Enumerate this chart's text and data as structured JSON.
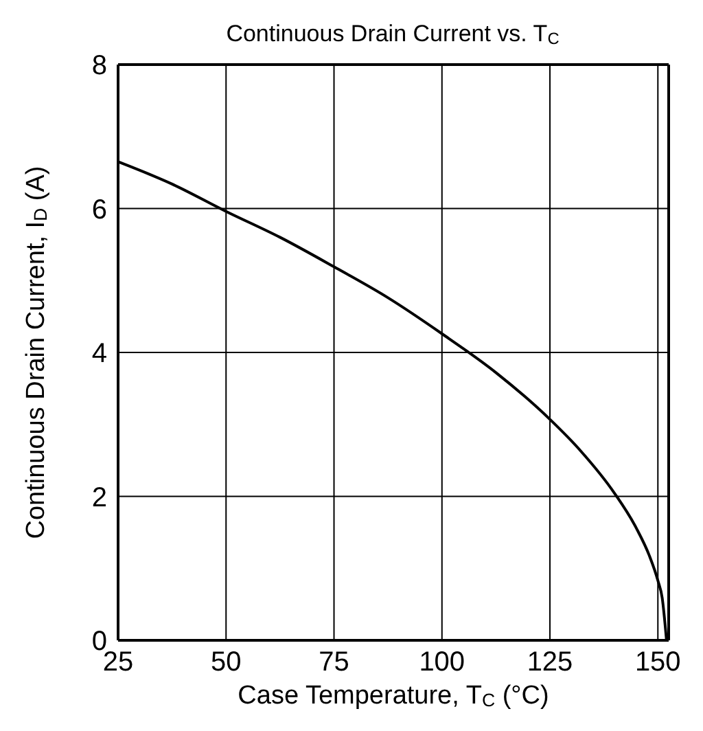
{
  "chart_data": {
    "type": "line",
    "title": "Continuous Drain Current vs. T$_{C}$",
    "xlabel": "Case Temperature, T$_{C}$ (°C)",
    "ylabel": "Continuous Drain Current, I$_{D}$ (A)",
    "x": [
      25,
      37.5,
      50,
      62.5,
      75,
      87.5,
      100,
      112.5,
      125,
      132,
      140,
      145,
      148,
      150,
      151,
      152
    ],
    "series": [
      {
        "color": "#000000",
        "values": [
          6.65,
          6.34,
          5.96,
          5.6,
          5.19,
          4.76,
          4.26,
          3.72,
          3.07,
          2.64,
          2.04,
          1.56,
          1.18,
          0.83,
          0.59,
          0
        ]
      }
    ],
    "xlim": [
      25,
      152.5
    ],
    "xticks": [
      25,
      50,
      75,
      100,
      125,
      150
    ],
    "ylim": [
      0,
      8
    ],
    "yticks": [
      0,
      2,
      4,
      6,
      8
    ],
    "grid": true,
    "marker": "none",
    "line_style": "solid",
    "legend": false
  }
}
